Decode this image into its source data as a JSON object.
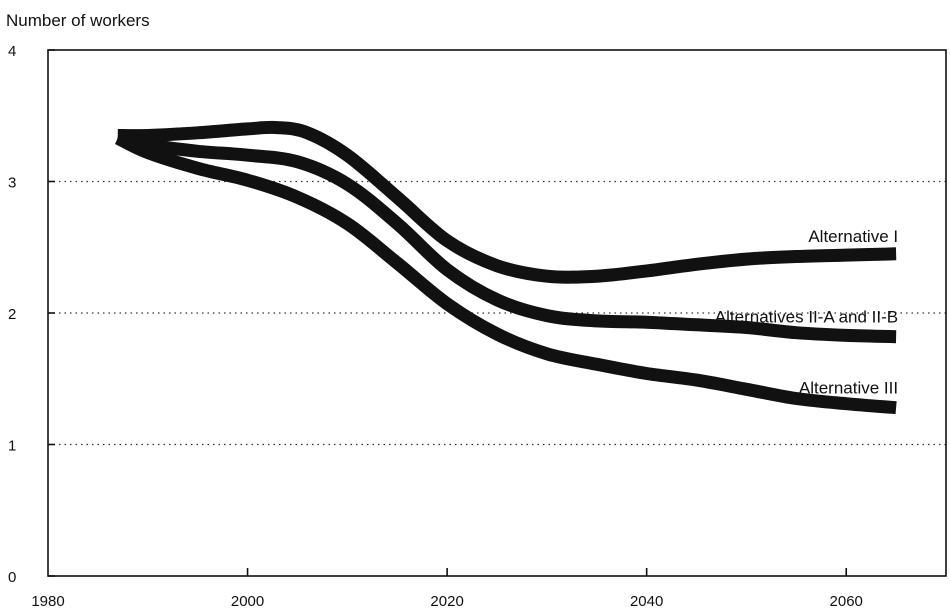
{
  "chart_data": {
    "type": "line",
    "title": "",
    "ylabel": "Number of  workers",
    "xlabel": "",
    "xlim": [
      1980,
      2070
    ],
    "ylim": [
      0,
      4
    ],
    "x_ticks": [
      1980,
      2000,
      2020,
      2040,
      2060
    ],
    "y_ticks": [
      0,
      1,
      2,
      3,
      4
    ],
    "grid": "horizontal dotted at 1, 2, 3",
    "legend": "labels beside lines at right",
    "series": [
      {
        "name": "Alternative I",
        "x": [
          1987,
          1990,
          1995,
          2000,
          2003,
          2006,
          2010,
          2015,
          2020,
          2025,
          2030,
          2035,
          2040,
          2045,
          2050,
          2055,
          2060,
          2065
        ],
        "y": [
          3.35,
          3.35,
          3.37,
          3.4,
          3.41,
          3.37,
          3.2,
          2.88,
          2.55,
          2.36,
          2.28,
          2.28,
          2.32,
          2.37,
          2.41,
          2.43,
          2.44,
          2.45
        ]
      },
      {
        "name": "Alternatives II-A and II-B",
        "x": [
          1987,
          1990,
          1995,
          2000,
          2005,
          2010,
          2015,
          2020,
          2025,
          2030,
          2035,
          2040,
          2045,
          2050,
          2055,
          2060,
          2065
        ],
        "y": [
          3.34,
          3.28,
          3.23,
          3.2,
          3.15,
          2.98,
          2.68,
          2.33,
          2.1,
          1.98,
          1.94,
          1.93,
          1.91,
          1.89,
          1.85,
          1.83,
          1.82
        ]
      },
      {
        "name": "Alternative III",
        "x": [
          1987,
          1990,
          1995,
          2000,
          2005,
          2010,
          2015,
          2020,
          2025,
          2030,
          2035,
          2040,
          2045,
          2050,
          2055,
          2060,
          2065
        ],
        "y": [
          3.33,
          3.22,
          3.1,
          3.01,
          2.88,
          2.68,
          2.38,
          2.07,
          1.84,
          1.69,
          1.61,
          1.54,
          1.49,
          1.42,
          1.35,
          1.31,
          1.28
        ]
      }
    ]
  }
}
